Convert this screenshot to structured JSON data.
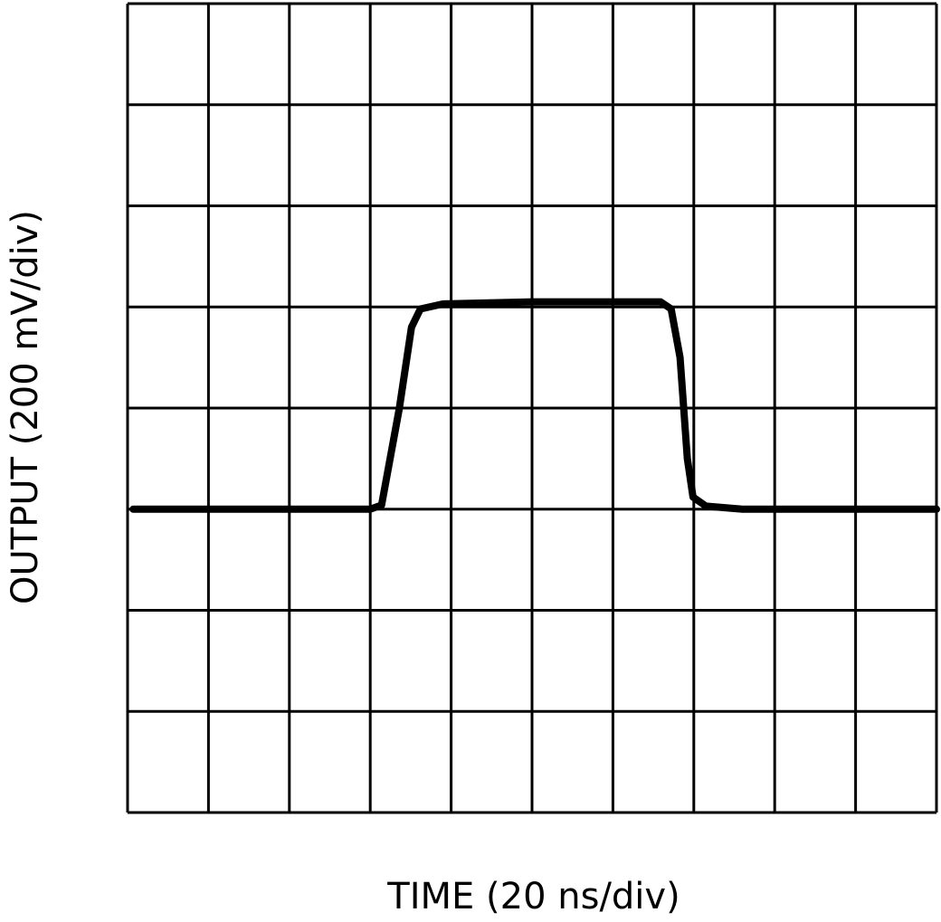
{
  "chart_data": {
    "type": "line",
    "xlabel": "TIME (20 ns/div)",
    "ylabel": "OUTPUT (200 mV/div)",
    "x": [
      0.07,
      3.0,
      3.14,
      3.36,
      3.51,
      3.62,
      3.9,
      5.0,
      6.59,
      6.72,
      6.83,
      6.92,
      6.99,
      7.15,
      7.6,
      10.0
    ],
    "values": [
      3.0,
      3.0,
      3.04,
      4.0,
      4.8,
      4.98,
      5.03,
      5.05,
      5.05,
      4.98,
      4.5,
      3.5,
      3.12,
      3.03,
      3.0,
      3.0
    ],
    "color": "#000000",
    "xlim": [
      0,
      10
    ],
    "ylim": [
      0,
      8
    ],
    "xdivisions": 10,
    "ydivisions": 8,
    "grid": true
  }
}
